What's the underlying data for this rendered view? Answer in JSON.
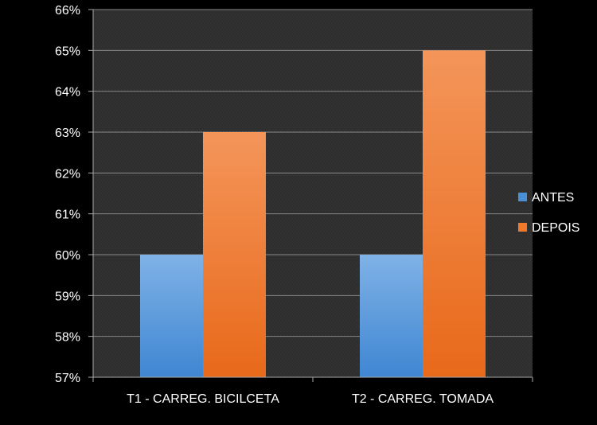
{
  "chart_data": {
    "type": "bar",
    "categories": [
      "T1 - CARREG. BICILCETA",
      "T2 - CARREG. TOMADA"
    ],
    "series": [
      {
        "name": "ANTES",
        "values": [
          60,
          60
        ],
        "color": "#4a8fd6"
      },
      {
        "name": "DEPOIS",
        "values": [
          63,
          65
        ],
        "color": "#f07a2a"
      }
    ],
    "ylim": [
      57,
      66
    ],
    "y_ticks": [
      57,
      58,
      59,
      60,
      61,
      62,
      63,
      64,
      65,
      66
    ],
    "y_tick_labels": [
      "57%",
      "58%",
      "59%",
      "60%",
      "61%",
      "62%",
      "63%",
      "64%",
      "65%",
      "66%"
    ],
    "y_unit": "%",
    "title": "",
    "xlabel": "",
    "ylabel": "",
    "grid": true,
    "legend_position": "right",
    "plot_background": "#333333",
    "gridline_color": "#888888"
  }
}
